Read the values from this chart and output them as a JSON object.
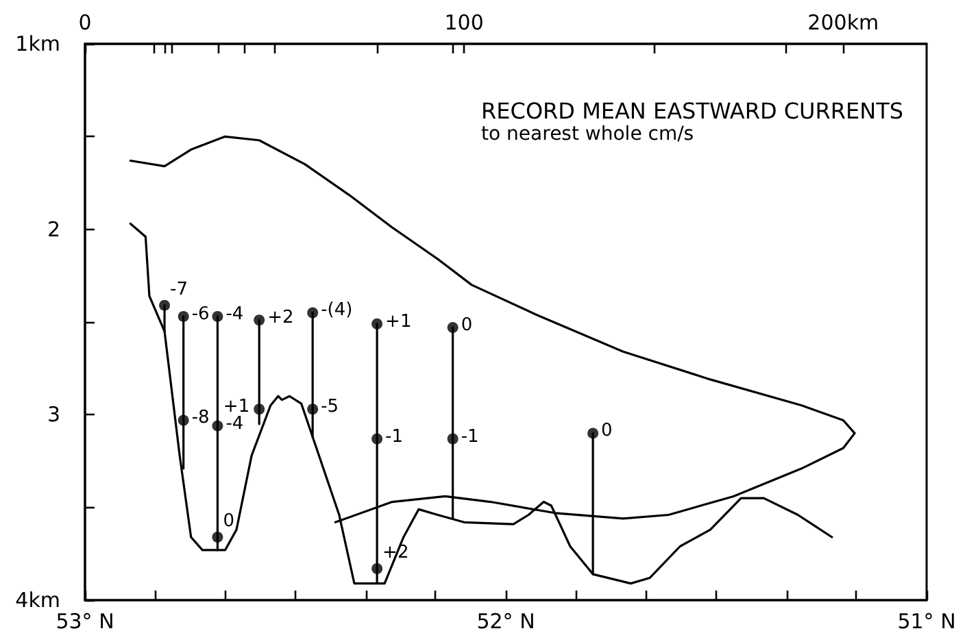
{
  "chart_data": {
    "type": "line",
    "title": "RECORD MEAN EASTWARD CURRENTS",
    "subtitle": "to nearest whole cm/s",
    "xlim": [
      53,
      51
    ],
    "xticks": [
      {
        "value": 53,
        "label": "53° N"
      },
      {
        "value": 52.833,
        "label": null
      },
      {
        "value": 52.667,
        "label": null
      },
      {
        "value": 52.5,
        "label": null
      },
      {
        "value": 52.333,
        "label": null
      },
      {
        "value": 52.167,
        "label": null
      },
      {
        "value": 52,
        "label": "52° N"
      },
      {
        "value": 51.833,
        "label": null
      },
      {
        "value": 51.667,
        "label": null
      },
      {
        "value": 51.5,
        "label": null
      },
      {
        "value": 51.333,
        "label": null
      },
      {
        "value": 51.167,
        "label": null
      },
      {
        "value": 51,
        "label": "51° N"
      }
    ],
    "x2lim": [
      0,
      222
    ],
    "x2ticks": [
      0,
      {
        "value": 18,
        "label": null
      },
      {
        "value": 21,
        "label": null
      },
      {
        "value": 23,
        "label": null
      },
      {
        "value": 35,
        "label": null
      },
      {
        "value": 42,
        "label": null
      },
      {
        "value": 50,
        "label": null
      },
      {
        "value": 77,
        "label": null
      },
      {
        "value": 97,
        "label": null
      },
      100,
      {
        "value": 150,
        "label": null
      },
      {
        "value": 185,
        "label": null
      },
      {
        "value": 200,
        "label": "200km"
      }
    ],
    "ylim": [
      4,
      1
    ],
    "yticks": [
      {
        "value": 1,
        "label": "1km"
      },
      {
        "value": 1.5,
        "label": null
      },
      2,
      {
        "value": 2.5,
        "label": null
      },
      3,
      {
        "value": 3.5,
        "label": null
      },
      {
        "value": 4,
        "label": "4km"
      }
    ],
    "series": [
      {
        "color": "#000000",
        "marker": "none",
        "x": [
          52.892,
          52.811,
          52.748,
          52.667,
          52.586,
          52.477,
          52.369,
          52.27,
          52.162,
          52.081,
          51.928,
          51.721,
          51.514,
          51.297,
          51.198,
          51.171,
          51.198,
          51.297,
          51.459,
          51.613,
          51.721,
          51.883,
          52.036,
          52.144,
          52.27,
          52.405
        ],
        "values": [
          1.63,
          1.66,
          1.57,
          1.5,
          1.52,
          1.65,
          1.82,
          1.99,
          2.16,
          2.3,
          2.46,
          2.66,
          2.81,
          2.95,
          3.03,
          3.1,
          3.18,
          3.29,
          3.44,
          3.54,
          3.56,
          3.53,
          3.47,
          3.44,
          3.47,
          3.58
        ]
      },
      {
        "color": "#000000",
        "marker": "none",
        "x": [
          52.892,
          52.856,
          52.847,
          52.811,
          52.775,
          52.748,
          52.721,
          52.667,
          52.64,
          52.604,
          52.559,
          52.541,
          52.532,
          52.514,
          52.486,
          52.459,
          52.396,
          52.36,
          52.288,
          52.243,
          52.207,
          52.162,
          52.099,
          51.982,
          51.946,
          51.91,
          51.892,
          51.847,
          51.793,
          51.703,
          51.658,
          51.586,
          51.514,
          51.441,
          51.387,
          51.306,
          51.225
        ],
        "values": [
          1.97,
          2.04,
          2.36,
          2.55,
          3.22,
          3.66,
          3.73,
          3.73,
          3.62,
          3.22,
          2.95,
          2.9,
          2.92,
          2.9,
          2.94,
          3.12,
          3.54,
          3.91,
          3.91,
          3.66,
          3.51,
          3.54,
          3.58,
          3.59,
          3.54,
          3.47,
          3.49,
          3.71,
          3.86,
          3.91,
          3.88,
          3.71,
          3.62,
          3.45,
          3.45,
          3.54,
          3.66
        ]
      },
      {
        "color": "#000000",
        "marker": "none",
        "x": [
          52.811,
          52.811
        ],
        "values": [
          2.41,
          2.55
        ]
      },
      {
        "color": "#000000",
        "marker": "none",
        "x": [
          52.766,
          52.766
        ],
        "values": [
          2.47,
          3.29
        ]
      },
      {
        "color": "#000000",
        "marker": "none",
        "x": [
          52.685,
          52.685
        ],
        "values": [
          2.47,
          3.73
        ]
      },
      {
        "color": "#000000",
        "marker": "none",
        "x": [
          52.586,
          52.586
        ],
        "values": [
          2.49,
          3.05
        ]
      },
      {
        "color": "#000000",
        "marker": "none",
        "x": [
          52.459,
          52.459
        ],
        "values": [
          2.45,
          3.12
        ]
      },
      {
        "color": "#000000",
        "marker": "none",
        "x": [
          52.306,
          52.306
        ],
        "values": [
          2.51,
          3.91
        ]
      },
      {
        "color": "#000000",
        "marker": "none",
        "x": [
          52.126,
          52.126
        ],
        "values": [
          2.53,
          3.56
        ]
      },
      {
        "color": "#000000",
        "marker": "none",
        "x": [
          51.793,
          51.793
        ],
        "values": [
          3.1,
          3.86
        ]
      },
      {
        "type": "scatter",
        "color": "#000000",
        "marker": "circle",
        "x": [
          52.811,
          52.766,
          52.766,
          52.685,
          52.685,
          52.685,
          52.586,
          52.586,
          52.459,
          52.459,
          52.306,
          52.306,
          52.306,
          52.126,
          52.126,
          51.793
        ],
        "values": [
          2.41,
          2.47,
          3.03,
          2.47,
          3.06,
          3.66,
          2.49,
          2.97,
          2.45,
          2.97,
          2.51,
          3.13,
          3.83,
          2.53,
          3.13,
          3.1
        ]
      }
    ],
    "annotations": [
      {
        "text": "-7",
        "x": 52.811,
        "y": 2.41
      },
      {
        "text": "-6",
        "x": 52.766,
        "y": 2.47
      },
      {
        "text": "-8",
        "x": 52.766,
        "y": 3.03
      },
      {
        "text": "-4",
        "x": 52.685,
        "y": 2.47
      },
      {
        "text": "-4",
        "x": 52.685,
        "y": 3.06
      },
      {
        "text": "0",
        "x": 52.685,
        "y": 3.66
      },
      {
        "text": "+2",
        "x": 52.586,
        "y": 2.49
      },
      {
        "text": "+1",
        "x": 52.586,
        "y": 2.97
      },
      {
        "text": "-(4)",
        "x": 52.459,
        "y": 2.45
      },
      {
        "text": "-5",
        "x": 52.459,
        "y": 2.97
      },
      {
        "text": "+1",
        "x": 52.306,
        "y": 2.51
      },
      {
        "text": "-1",
        "x": 52.306,
        "y": 3.13
      },
      {
        "text": "+2",
        "x": 52.306,
        "y": 3.83
      },
      {
        "text": "0",
        "x": 52.126,
        "y": 2.53
      },
      {
        "text": "-1",
        "x": 52.126,
        "y": 3.13
      },
      {
        "text": "0",
        "x": 51.793,
        "y": 3.1
      }
    ]
  }
}
